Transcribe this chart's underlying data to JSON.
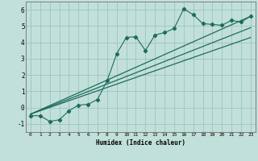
{
  "xlabel": "Humidex (Indice chaleur)",
  "bg_color": "#c2e0da",
  "grid_color": "#9dc4be",
  "line_color": "#1e6b5e",
  "xlim": [
    -0.5,
    23.5
  ],
  "ylim": [
    -1.5,
    6.5
  ],
  "xticks": [
    0,
    1,
    2,
    3,
    4,
    5,
    6,
    7,
    8,
    9,
    10,
    11,
    12,
    13,
    14,
    15,
    16,
    17,
    18,
    19,
    20,
    21,
    22,
    23
  ],
  "yticks": [
    -1,
    0,
    1,
    2,
    3,
    4,
    5,
    6
  ],
  "scatter_x": [
    0,
    1,
    2,
    3,
    4,
    5,
    6,
    7,
    8,
    9,
    10,
    11,
    12,
    13,
    14,
    15,
    16,
    17,
    18,
    19,
    20,
    21,
    22,
    23
  ],
  "scatter_y": [
    -0.5,
    -0.5,
    -0.85,
    -0.75,
    -0.2,
    0.15,
    0.2,
    0.5,
    1.65,
    3.3,
    4.3,
    4.35,
    3.5,
    4.45,
    4.6,
    4.85,
    6.05,
    5.7,
    5.15,
    5.1,
    5.05,
    5.35,
    5.25,
    5.6
  ],
  "line1_x": [
    0,
    23
  ],
  "line1_y": [
    -0.4,
    5.6
  ],
  "line2_x": [
    0,
    23
  ],
  "line2_y": [
    -0.4,
    4.9
  ],
  "line3_x": [
    0,
    23
  ],
  "line3_y": [
    -0.4,
    4.3
  ]
}
